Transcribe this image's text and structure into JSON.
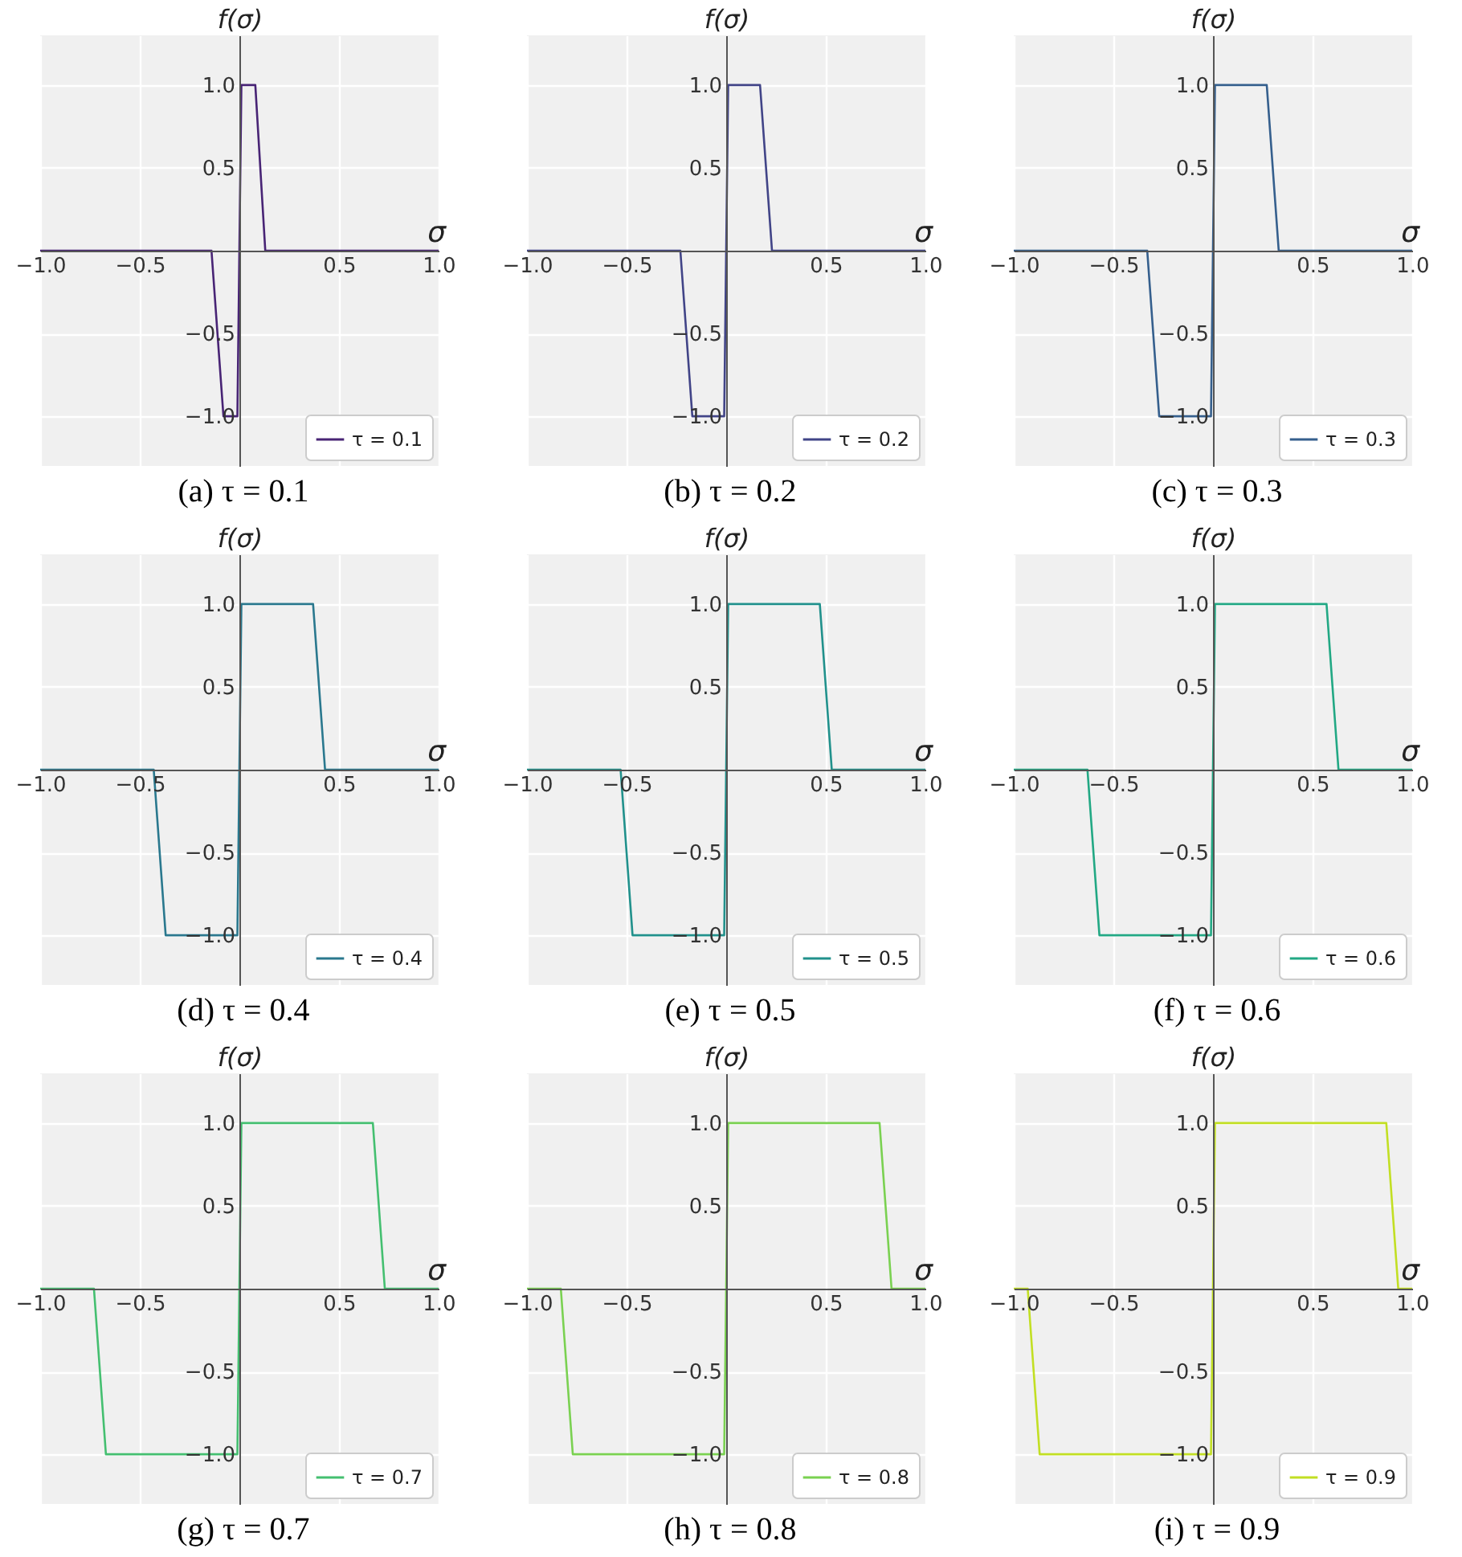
{
  "chart_data": [
    {
      "type": "line",
      "xlabel": "σ",
      "ylabel": "f(σ)",
      "annotations": [
        "(a) τ = 0.1"
      ],
      "x": [
        -1,
        -0.14,
        -0.08,
        -0.01,
        0.01,
        0.08,
        0.13,
        1
      ],
      "series": [
        {
          "name": "τ = 0.1",
          "color": "#482475",
          "values": [
            0,
            0,
            -1,
            -1,
            1,
            1,
            0,
            0
          ]
        }
      ],
      "xlim": [
        -1,
        1
      ],
      "ylim": [
        -1.3,
        1.3
      ],
      "xticks": [
        {
          "value": -1,
          "label": "−1.0"
        },
        {
          "value": -0.5,
          "label": "−0.5"
        },
        {
          "value": 0.5,
          "label": "0.5"
        },
        {
          "value": 1,
          "label": "1.0"
        }
      ],
      "yticks": [
        {
          "value": -1,
          "label": "−1.0"
        },
        {
          "value": -0.5,
          "label": "−0.5"
        },
        {
          "value": 0.5,
          "label": "0.5"
        },
        {
          "value": 1,
          "label": "1.0"
        }
      ],
      "grid": true,
      "legend": "bottom right"
    },
    {
      "type": "line",
      "xlabel": "σ",
      "ylabel": "f(σ)",
      "annotations": [
        "(b) τ = 0.2"
      ],
      "x": [
        -1,
        -0.23,
        -0.17,
        -0.01,
        0.01,
        0.17,
        0.23,
        1
      ],
      "series": [
        {
          "name": "τ = 0.2",
          "color": "#414487",
          "values": [
            0,
            0,
            -1,
            -1,
            1,
            1,
            0,
            0
          ]
        }
      ],
      "xlim": [
        -1,
        1
      ],
      "ylim": [
        -1.3,
        1.3
      ],
      "xticks": [
        {
          "value": -1,
          "label": "−1.0"
        },
        {
          "value": -0.5,
          "label": "−0.5"
        },
        {
          "value": 0.5,
          "label": "0.5"
        },
        {
          "value": 1,
          "label": "1.0"
        }
      ],
      "yticks": [
        {
          "value": -1,
          "label": "−1.0"
        },
        {
          "value": -0.5,
          "label": "−0.5"
        },
        {
          "value": 0.5,
          "label": "0.5"
        },
        {
          "value": 1,
          "label": "1.0"
        }
      ],
      "grid": true,
      "legend": "bottom right"
    },
    {
      "type": "line",
      "xlabel": "σ",
      "ylabel": "f(σ)",
      "annotations": [
        "(c) τ = 0.3"
      ],
      "x": [
        -1,
        -0.33,
        -0.27,
        -0.01,
        0.01,
        0.27,
        0.33,
        1
      ],
      "series": [
        {
          "name": "τ = 0.3",
          "color": "#355f8d",
          "values": [
            0,
            0,
            -1,
            -1,
            1,
            1,
            0,
            0
          ]
        }
      ],
      "xlim": [
        -1,
        1
      ],
      "ylim": [
        -1.3,
        1.3
      ],
      "xticks": [
        {
          "value": -1,
          "label": "−1.0"
        },
        {
          "value": -0.5,
          "label": "−0.5"
        },
        {
          "value": 0.5,
          "label": "0.5"
        },
        {
          "value": 1,
          "label": "1.0"
        }
      ],
      "yticks": [
        {
          "value": -1,
          "label": "−1.0"
        },
        {
          "value": -0.5,
          "label": "−0.5"
        },
        {
          "value": 0.5,
          "label": "0.5"
        },
        {
          "value": 1,
          "label": "1.0"
        }
      ],
      "grid": true,
      "legend": "bottom right"
    },
    {
      "type": "line",
      "xlabel": "σ",
      "ylabel": "f(σ)",
      "annotations": [
        "(d) τ = 0.4"
      ],
      "x": [
        -1,
        -0.43,
        -0.37,
        -0.01,
        0.01,
        0.37,
        0.43,
        1
      ],
      "series": [
        {
          "name": "τ = 0.4",
          "color": "#2a788e",
          "values": [
            0,
            0,
            -1,
            -1,
            1,
            1,
            0,
            0
          ]
        }
      ],
      "xlim": [
        -1,
        1
      ],
      "ylim": [
        -1.3,
        1.3
      ],
      "xticks": [
        {
          "value": -1,
          "label": "−1.0"
        },
        {
          "value": -0.5,
          "label": "−0.5"
        },
        {
          "value": 0.5,
          "label": "0.5"
        },
        {
          "value": 1,
          "label": "1.0"
        }
      ],
      "yticks": [
        {
          "value": -1,
          "label": "−1.0"
        },
        {
          "value": -0.5,
          "label": "−0.5"
        },
        {
          "value": 0.5,
          "label": "0.5"
        },
        {
          "value": 1,
          "label": "1.0"
        }
      ],
      "grid": true,
      "legend": "bottom right"
    },
    {
      "type": "line",
      "xlabel": "σ",
      "ylabel": "f(σ)",
      "annotations": [
        "(e) τ = 0.5"
      ],
      "x": [
        -1,
        -0.53,
        -0.47,
        -0.01,
        0.01,
        0.47,
        0.53,
        1
      ],
      "series": [
        {
          "name": "τ = 0.5",
          "color": "#21918c",
          "values": [
            0,
            0,
            -1,
            -1,
            1,
            1,
            0,
            0
          ]
        }
      ],
      "xlim": [
        -1,
        1
      ],
      "ylim": [
        -1.3,
        1.3
      ],
      "xticks": [
        {
          "value": -1,
          "label": "−1.0"
        },
        {
          "value": -0.5,
          "label": "−0.5"
        },
        {
          "value": 0.5,
          "label": "0.5"
        },
        {
          "value": 1,
          "label": "1.0"
        }
      ],
      "yticks": [
        {
          "value": -1,
          "label": "−1.0"
        },
        {
          "value": -0.5,
          "label": "−0.5"
        },
        {
          "value": 0.5,
          "label": "0.5"
        },
        {
          "value": 1,
          "label": "1.0"
        }
      ],
      "grid": true,
      "legend": "bottom right"
    },
    {
      "type": "line",
      "xlabel": "σ",
      "ylabel": "f(σ)",
      "annotations": [
        "(f) τ = 0.6"
      ],
      "x": [
        -1,
        -0.63,
        -0.57,
        -0.01,
        0.01,
        0.57,
        0.63,
        1
      ],
      "series": [
        {
          "name": "τ = 0.6",
          "color": "#22a884",
          "values": [
            0,
            0,
            -1,
            -1,
            1,
            1,
            0,
            0
          ]
        }
      ],
      "xlim": [
        -1,
        1
      ],
      "ylim": [
        -1.3,
        1.3
      ],
      "xticks": [
        {
          "value": -1,
          "label": "−1.0"
        },
        {
          "value": -0.5,
          "label": "−0.5"
        },
        {
          "value": 0.5,
          "label": "0.5"
        },
        {
          "value": 1,
          "label": "1.0"
        }
      ],
      "yticks": [
        {
          "value": -1,
          "label": "−1.0"
        },
        {
          "value": -0.5,
          "label": "−0.5"
        },
        {
          "value": 0.5,
          "label": "0.5"
        },
        {
          "value": 1,
          "label": "1.0"
        }
      ],
      "grid": true,
      "legend": "bottom right"
    },
    {
      "type": "line",
      "xlabel": "σ",
      "ylabel": "f(σ)",
      "annotations": [
        "(g) τ = 0.7"
      ],
      "x": [
        -1,
        -0.73,
        -0.67,
        -0.01,
        0.01,
        0.67,
        0.73,
        1
      ],
      "series": [
        {
          "name": "τ = 0.7",
          "color": "#44bf70",
          "values": [
            0,
            0,
            -1,
            -1,
            1,
            1,
            0,
            0
          ]
        }
      ],
      "xlim": [
        -1,
        1
      ],
      "ylim": [
        -1.3,
        1.3
      ],
      "xticks": [
        {
          "value": -1,
          "label": "−1.0"
        },
        {
          "value": -0.5,
          "label": "−0.5"
        },
        {
          "value": 0.5,
          "label": "0.5"
        },
        {
          "value": 1,
          "label": "1.0"
        }
      ],
      "yticks": [
        {
          "value": -1,
          "label": "−1.0"
        },
        {
          "value": -0.5,
          "label": "−0.5"
        },
        {
          "value": 0.5,
          "label": "0.5"
        },
        {
          "value": 1,
          "label": "1.0"
        }
      ],
      "grid": true,
      "legend": "bottom right"
    },
    {
      "type": "line",
      "xlabel": "σ",
      "ylabel": "f(σ)",
      "annotations": [
        "(h) τ = 0.8"
      ],
      "x": [
        -1,
        -0.83,
        -0.77,
        -0.01,
        0.01,
        0.77,
        0.83,
        1
      ],
      "series": [
        {
          "name": "τ = 0.8",
          "color": "#7ad151",
          "values": [
            0,
            0,
            -1,
            -1,
            1,
            1,
            0,
            0
          ]
        }
      ],
      "xlim": [
        -1,
        1
      ],
      "ylim": [
        -1.3,
        1.3
      ],
      "xticks": [
        {
          "value": -1,
          "label": "−1.0"
        },
        {
          "value": -0.5,
          "label": "−0.5"
        },
        {
          "value": 0.5,
          "label": "0.5"
        },
        {
          "value": 1,
          "label": "1.0"
        }
      ],
      "yticks": [
        {
          "value": -1,
          "label": "−1.0"
        },
        {
          "value": -0.5,
          "label": "−0.5"
        },
        {
          "value": 0.5,
          "label": "0.5"
        },
        {
          "value": 1,
          "label": "1.0"
        }
      ],
      "grid": true,
      "legend": "bottom right"
    },
    {
      "type": "line",
      "xlabel": "σ",
      "ylabel": "f(σ)",
      "annotations": [
        "(i) τ = 0.9"
      ],
      "x": [
        -1,
        -0.93,
        -0.87,
        -0.01,
        0.01,
        0.87,
        0.93,
        1
      ],
      "series": [
        {
          "name": "τ = 0.9",
          "color": "#c2df23",
          "values": [
            0,
            0,
            -1,
            -1,
            1,
            1,
            0,
            0
          ]
        }
      ],
      "xlim": [
        -1,
        1
      ],
      "ylim": [
        -1.3,
        1.3
      ],
      "xticks": [
        {
          "value": -1,
          "label": "−1.0"
        },
        {
          "value": -0.5,
          "label": "−0.5"
        },
        {
          "value": 0.5,
          "label": "0.5"
        },
        {
          "value": 1,
          "label": "1.0"
        }
      ],
      "yticks": [
        {
          "value": -1,
          "label": "−1.0"
        },
        {
          "value": -0.5,
          "label": "−0.5"
        },
        {
          "value": 0.5,
          "label": "0.5"
        },
        {
          "value": 1,
          "label": "1.0"
        }
      ],
      "grid": true,
      "legend": "bottom right"
    }
  ]
}
